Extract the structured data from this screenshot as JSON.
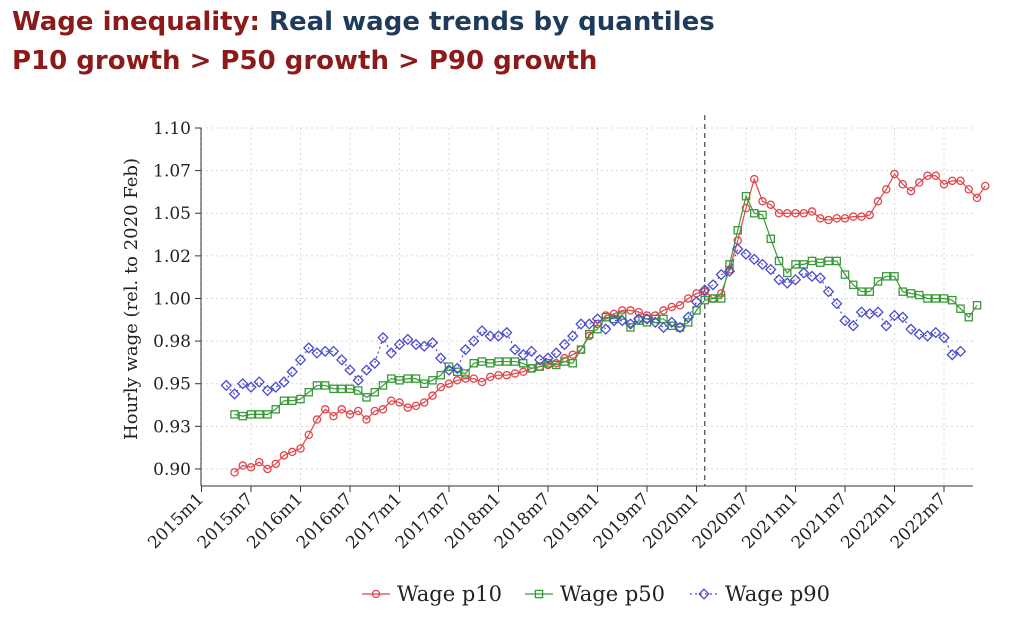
{
  "title": {
    "part1": "Wage inequality:",
    "part2": "Real wage trends by quantiles",
    "line2": "P10 growth > P50 growth > P90 growth"
  },
  "colors": {
    "title_red": "#8c1a1a",
    "title_blue": "#1f3b5c",
    "p10": "#e0464b",
    "p50": "#3a9a3a",
    "p90": "#4b4bcf",
    "grid": "#d8d8d8",
    "axis": "#333333"
  },
  "chart_data": {
    "type": "line",
    "ylabel": "Hourly wage (rel. to 2020 Feb)",
    "ylim": [
      0.89,
      1.1
    ],
    "yticks": [
      0.9,
      0.925,
      0.95,
      0.975,
      1.0,
      1.025,
      1.05,
      1.075,
      1.1
    ],
    "ytick_labels": [
      "0.90",
      "0.93",
      "0.95",
      "0.98",
      "1.00",
      "1.02",
      "1.05",
      "1.07",
      "1.10"
    ],
    "xtick_labels": [
      "2015m1",
      "2015m7",
      "2016m1",
      "2016m7",
      "2017m1",
      "2017m7",
      "2018m1",
      "2018m7",
      "2019m1",
      "2019m7",
      "2020m1",
      "2020m7",
      "2021m1",
      "2021m7",
      "2022m1",
      "2022m7"
    ],
    "x_start": "2015m1",
    "vline_at": "2020m2",
    "grid": true,
    "legend_position": "bottom",
    "series": [
      {
        "name": "Wage p10",
        "marker": "circle",
        "start": "2015m5",
        "values": [
          0.898,
          0.902,
          0.901,
          0.904,
          0.9,
          0.903,
          0.908,
          0.91,
          0.912,
          0.92,
          0.929,
          0.935,
          0.931,
          0.935,
          0.932,
          0.934,
          0.929,
          0.934,
          0.935,
          0.94,
          0.939,
          0.936,
          0.937,
          0.939,
          0.943,
          0.948,
          0.95,
          0.952,
          0.953,
          0.953,
          0.951,
          0.954,
          0.955,
          0.955,
          0.956,
          0.957,
          0.959,
          0.96,
          0.961,
          0.962,
          0.965,
          0.967,
          0.97,
          0.978,
          0.985,
          0.99,
          0.991,
          0.993,
          0.993,
          0.992,
          0.99,
          0.99,
          0.993,
          0.995,
          0.996,
          1.0,
          1.003,
          1.004,
          1.0,
          1.003,
          1.017,
          1.034,
          1.053,
          1.07,
          1.057,
          1.055,
          1.05,
          1.05,
          1.05,
          1.05,
          1.051,
          1.047,
          1.046,
          1.047,
          1.047,
          1.048,
          1.048,
          1.049,
          1.057,
          1.064,
          1.073,
          1.067,
          1.063,
          1.068,
          1.072,
          1.072,
          1.067,
          1.069,
          1.069,
          1.064,
          1.059,
          1.066
        ]
      },
      {
        "name": "Wage p50",
        "marker": "square",
        "start": "2015m5",
        "values": [
          0.932,
          0.931,
          0.932,
          0.932,
          0.932,
          0.935,
          0.94,
          0.94,
          0.941,
          0.945,
          0.949,
          0.949,
          0.947,
          0.947,
          0.947,
          0.946,
          0.942,
          0.945,
          0.949,
          0.953,
          0.952,
          0.953,
          0.953,
          0.95,
          0.952,
          0.955,
          0.96,
          0.957,
          0.956,
          0.962,
          0.963,
          0.962,
          0.963,
          0.963,
          0.963,
          0.962,
          0.959,
          0.96,
          0.962,
          0.961,
          0.963,
          0.962,
          0.97,
          0.979,
          0.982,
          0.989,
          0.988,
          0.99,
          0.983,
          0.987,
          0.986,
          0.988,
          0.988,
          0.984,
          0.983,
          0.986,
          0.993,
          0.999,
          1.0,
          1.0,
          1.02,
          1.04,
          1.06,
          1.05,
          1.049,
          1.035,
          1.022,
          1.015,
          1.02,
          1.02,
          1.022,
          1.021,
          1.022,
          1.022,
          1.014,
          1.008,
          1.004,
          1.004,
          1.01,
          1.013,
          1.013,
          1.004,
          1.003,
          1.002,
          1.0,
          1.0,
          1.0,
          0.999,
          0.994,
          0.989,
          0.996
        ]
      },
      {
        "name": "Wage p90",
        "marker": "diamond",
        "start": "2015m4",
        "values": [
          0.949,
          0.944,
          0.95,
          0.948,
          0.951,
          0.946,
          0.948,
          0.951,
          0.957,
          0.964,
          0.971,
          0.968,
          0.969,
          0.969,
          0.964,
          0.958,
          0.952,
          0.958,
          0.962,
          0.977,
          0.968,
          0.973,
          0.976,
          0.973,
          0.972,
          0.974,
          0.965,
          0.958,
          0.959,
          0.97,
          0.975,
          0.981,
          0.978,
          0.978,
          0.98,
          0.97,
          0.967,
          0.969,
          0.964,
          0.965,
          0.968,
          0.973,
          0.978,
          0.985,
          0.985,
          0.988,
          0.982,
          0.987,
          0.987,
          0.985,
          0.988,
          0.988,
          0.986,
          0.983,
          0.986,
          0.983,
          0.989,
          0.998,
          1.005,
          1.008,
          1.014,
          1.016,
          1.029,
          1.026,
          1.023,
          1.02,
          1.017,
          1.011,
          1.009,
          1.011,
          1.015,
          1.013,
          1.012,
          1.004,
          0.997,
          0.987,
          0.984,
          0.992,
          0.991,
          0.992,
          0.984,
          0.99,
          0.989,
          0.982,
          0.979,
          0.978,
          0.98,
          0.977,
          0.967,
          0.969
        ]
      }
    ]
  }
}
